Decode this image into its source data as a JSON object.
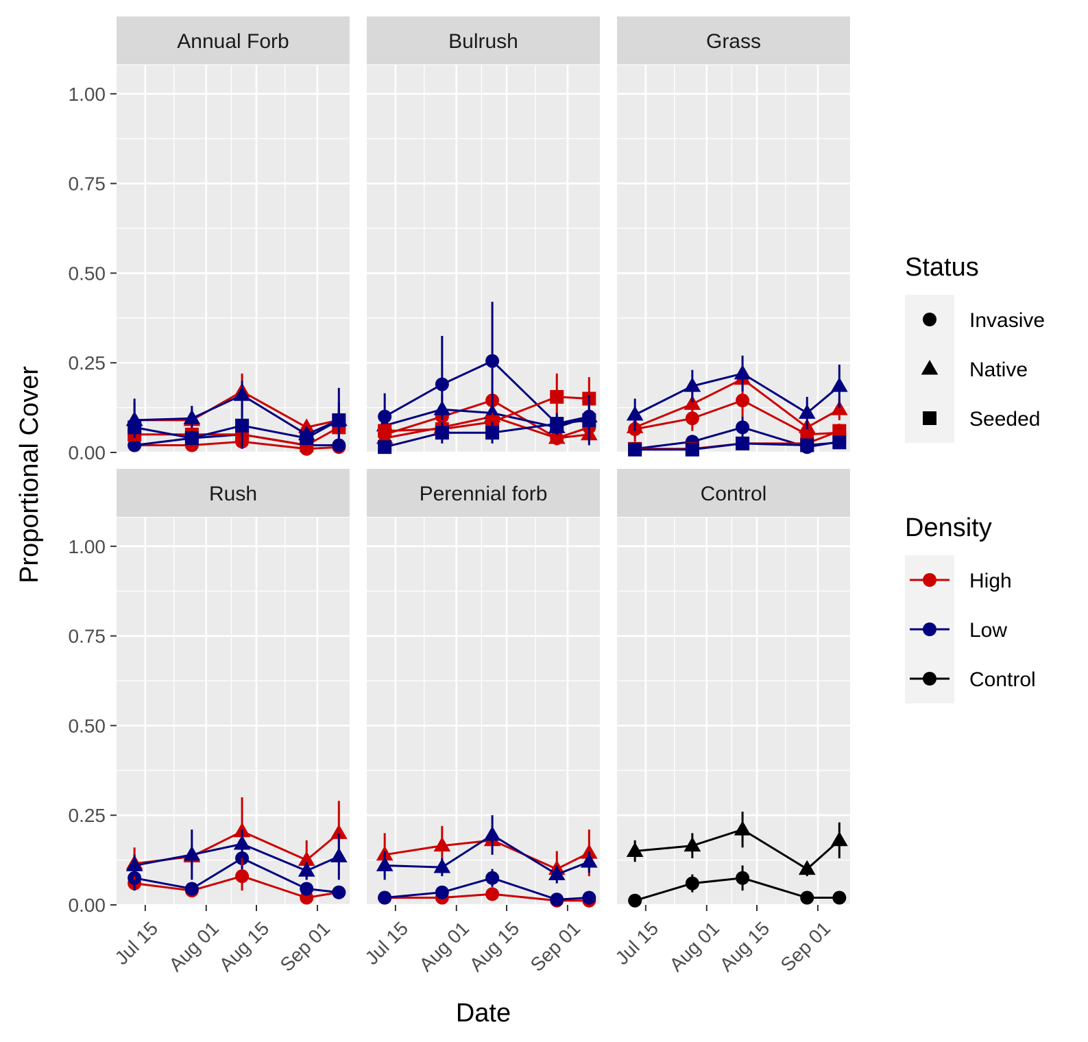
{
  "chart_data": {
    "type": "line",
    "facet_type": "wrap",
    "x_type": "date",
    "xlabel": "Date",
    "ylabel": "Proportional Cover",
    "ylim": [
      0,
      1.08
    ],
    "yticks": [
      0,
      0.25,
      0.5,
      0.75,
      1.0
    ],
    "ytick_labels": [
      "0.00",
      "0.25",
      "0.50",
      "0.75",
      "1.00"
    ],
    "xlim": [
      "2018-07-07",
      "2018-09-10"
    ],
    "xticks": [
      "2018-07-15",
      "2018-08-01",
      "2018-08-15",
      "2018-09-01"
    ],
    "xtick_labels": [
      "Jul 15",
      "Aug 01",
      "Aug 15",
      "Sep 01"
    ],
    "x_minor_breaks": [
      "2018-07-23",
      "2018-08-08",
      "2018-08-23"
    ],
    "sample_dates": [
      "2018-07-12",
      "2018-07-28",
      "2018-08-11",
      "2018-08-29",
      "2018-09-07"
    ],
    "grid": true,
    "panel_background": "#ebebeb",
    "legends": [
      {
        "title": "Status",
        "entries": [
          {
            "label": "Invasive",
            "shape": "circle"
          },
          {
            "label": "Native",
            "shape": "triangle"
          },
          {
            "label": "Seeded",
            "shape": "square"
          }
        ]
      },
      {
        "title": "Density",
        "entries": [
          {
            "label": "High",
            "color": "#cc0000"
          },
          {
            "label": "Low",
            "color": "#000080"
          },
          {
            "label": "Control",
            "color": "#000000"
          }
        ]
      }
    ],
    "legend_position": "right",
    "facets": [
      {
        "label": "Annual Forb",
        "series": [
          {
            "status": "Invasive",
            "density": "High",
            "y": [
              0.02,
              0.02,
              0.03,
              0.01,
              0.015
            ],
            "lo": [
              0.015,
              0.015,
              0.02,
              0.005,
              0.01
            ],
            "hi": [
              0.03,
              0.03,
              0.045,
              0.02,
              0.025
            ]
          },
          {
            "status": "Invasive",
            "density": "Low",
            "y": [
              0.02,
              0.04,
              0.05,
              0.02,
              0.02
            ],
            "lo": [
              0.015,
              0.03,
              0.035,
              0.015,
              0.015
            ],
            "hi": [
              0.03,
              0.05,
              0.06,
              0.03,
              0.03
            ]
          },
          {
            "status": "Native",
            "density": "High",
            "y": [
              0.09,
              0.09,
              0.17,
              0.07,
              0.09
            ],
            "lo": [
              0.04,
              0.06,
              0.12,
              0.05,
              0.06
            ],
            "hi": [
              0.14,
              0.12,
              0.22,
              0.09,
              0.12
            ]
          },
          {
            "status": "Native",
            "density": "Low",
            "y": [
              0.09,
              0.095,
              0.16,
              0.05,
              0.09
            ],
            "lo": [
              0.03,
              0.06,
              0.1,
              0.03,
              0.04
            ],
            "hi": [
              0.15,
              0.13,
              0.2,
              0.07,
              0.14
            ]
          },
          {
            "status": "Seeded",
            "density": "High",
            "y": [
              0.05,
              0.05,
              0.05,
              0.02,
              0.07
            ],
            "lo": [
              0.03,
              0.03,
              0.03,
              0.01,
              0.04
            ],
            "hi": [
              0.07,
              0.07,
              0.07,
              0.03,
              0.1
            ]
          },
          {
            "status": "Seeded",
            "density": "Low",
            "y": [
              0.07,
              0.04,
              0.075,
              0.04,
              0.09
            ],
            "lo": [
              0.04,
              0.02,
              0.01,
              0.02,
              0.0
            ],
            "hi": [
              0.1,
              0.06,
              0.14,
              0.06,
              0.18
            ]
          }
        ]
      },
      {
        "label": "Bulrush",
        "series": [
          {
            "status": "Invasive",
            "density": "High",
            "y": [
              0.05,
              0.1,
              0.145,
              0.04,
              0.07
            ],
            "lo": [
              0.03,
              0.08,
              0.11,
              0.02,
              0.05
            ],
            "hi": [
              0.07,
              0.12,
              0.18,
              0.06,
              0.09
            ]
          },
          {
            "status": "Invasive",
            "density": "Low",
            "y": [
              0.1,
              0.19,
              0.255,
              0.08,
              0.1
            ],
            "lo": [
              0.05,
              0.05,
              0.09,
              0.06,
              0.07
            ],
            "hi": [
              0.165,
              0.325,
              0.42,
              0.1,
              0.13
            ]
          },
          {
            "status": "Native",
            "density": "High",
            "y": [
              0.04,
              0.07,
              0.1,
              0.04,
              0.05
            ],
            "lo": [
              0.02,
              0.05,
              0.08,
              0.02,
              0.03
            ],
            "hi": [
              0.06,
              0.09,
              0.12,
              0.06,
              0.07
            ]
          },
          {
            "status": "Native",
            "density": "Low",
            "y": [
              0.075,
              0.12,
              0.11,
              0.07,
              0.1
            ],
            "lo": [
              0.05,
              0.08,
              0.08,
              0.05,
              0.07
            ],
            "hi": [
              0.1,
              0.16,
              0.14,
              0.09,
              0.13
            ]
          },
          {
            "status": "Seeded",
            "density": "High",
            "y": [
              0.06,
              0.065,
              0.085,
              0.155,
              0.15
            ],
            "lo": [
              0.04,
              0.04,
              0.06,
              0.09,
              0.09
            ],
            "hi": [
              0.08,
              0.09,
              0.11,
              0.22,
              0.21
            ]
          },
          {
            "status": "Seeded",
            "density": "Low",
            "y": [
              0.015,
              0.055,
              0.055,
              0.08,
              0.09
            ],
            "lo": [
              0.005,
              0.025,
              0.025,
              0.05,
              0.02
            ],
            "hi": [
              0.025,
              0.085,
              0.085,
              0.11,
              0.16
            ]
          }
        ]
      },
      {
        "label": "Grass",
        "series": [
          {
            "status": "Invasive",
            "density": "High",
            "y": [
              0.065,
              0.095,
              0.145,
              0.05,
              0.055
            ],
            "lo": [
              0.03,
              0.06,
              0.1,
              0.03,
              0.03
            ],
            "hi": [
              0.1,
              0.13,
              0.19,
              0.07,
              0.08
            ]
          },
          {
            "status": "Invasive",
            "density": "Low",
            "y": [
              0.01,
              0.03,
              0.07,
              0.015,
              0.03
            ],
            "lo": [
              0.005,
              0.015,
              0.04,
              0.005,
              0.015
            ],
            "hi": [
              0.015,
              0.045,
              0.1,
              0.025,
              0.045
            ]
          },
          {
            "status": "Native",
            "density": "High",
            "y": [
              0.07,
              0.135,
              0.205,
              0.07,
              0.12
            ],
            "lo": [
              0.04,
              0.1,
              0.17,
              0.05,
              0.09
            ],
            "hi": [
              0.1,
              0.17,
              0.24,
              0.09,
              0.15
            ]
          },
          {
            "status": "Native",
            "density": "Low",
            "y": [
              0.105,
              0.185,
              0.22,
              0.11,
              0.185
            ],
            "lo": [
              0.06,
              0.14,
              0.17,
              0.065,
              0.125
            ],
            "hi": [
              0.15,
              0.23,
              0.27,
              0.155,
              0.245
            ]
          },
          {
            "status": "Seeded",
            "density": "High",
            "y": [
              0.01,
              0.01,
              0.025,
              0.025,
              0.06
            ],
            "lo": [
              0.005,
              0.005,
              0.015,
              0.015,
              0.04
            ],
            "hi": [
              0.015,
              0.015,
              0.035,
              0.035,
              0.08
            ]
          },
          {
            "status": "Seeded",
            "density": "Low",
            "y": [
              0.008,
              0.008,
              0.025,
              0.02,
              0.028
            ],
            "lo": [
              0.004,
              0.004,
              0.015,
              0.01,
              0.018
            ],
            "hi": [
              0.012,
              0.012,
              0.035,
              0.03,
              0.038
            ]
          }
        ]
      },
      {
        "label": "Rush",
        "series": [
          {
            "status": "Invasive",
            "density": "High",
            "y": [
              0.06,
              0.04,
              0.08,
              0.02,
              0.035
            ],
            "lo": [
              0.04,
              0.025,
              0.04,
              0.01,
              0.02
            ],
            "hi": [
              0.08,
              0.055,
              0.12,
              0.03,
              0.05
            ]
          },
          {
            "status": "Invasive",
            "density": "Low",
            "y": [
              0.075,
              0.045,
              0.13,
              0.045,
              0.035
            ],
            "lo": [
              0.04,
              0.03,
              0.1,
              0.03,
              0.02
            ],
            "hi": [
              0.11,
              0.06,
              0.16,
              0.06,
              0.05
            ]
          },
          {
            "status": "Native",
            "density": "High",
            "y": [
              0.115,
              0.135,
              0.205,
              0.125,
              0.2
            ],
            "lo": [
              0.07,
              0.11,
              0.11,
              0.07,
              0.11
            ],
            "hi": [
              0.16,
              0.16,
              0.3,
              0.18,
              0.29
            ]
          },
          {
            "status": "Native",
            "density": "Low",
            "y": [
              0.11,
              0.14,
              0.17,
              0.095,
              0.135
            ],
            "lo": [
              0.08,
              0.07,
              0.13,
              0.07,
              0.07
            ],
            "hi": [
              0.14,
              0.21,
              0.21,
              0.12,
              0.2
            ]
          }
        ]
      },
      {
        "label": "Perennial forb",
        "series": [
          {
            "status": "Invasive",
            "density": "High",
            "y": [
              0.02,
              0.02,
              0.03,
              0.012,
              0.012
            ],
            "lo": [
              0.015,
              0.015,
              0.02,
              0.008,
              0.008
            ],
            "hi": [
              0.025,
              0.025,
              0.04,
              0.016,
              0.016
            ]
          },
          {
            "status": "Invasive",
            "density": "Low",
            "y": [
              0.02,
              0.035,
              0.075,
              0.015,
              0.02
            ],
            "lo": [
              0.015,
              0.025,
              0.05,
              0.01,
              0.015
            ],
            "hi": [
              0.025,
              0.045,
              0.1,
              0.02,
              0.025
            ]
          },
          {
            "status": "Native",
            "density": "High",
            "y": [
              0.14,
              0.165,
              0.18,
              0.1,
              0.145
            ],
            "lo": [
              0.08,
              0.11,
              0.14,
              0.07,
              0.08
            ],
            "hi": [
              0.2,
              0.22,
              0.22,
              0.15,
              0.21
            ]
          },
          {
            "status": "Native",
            "density": "Low",
            "y": [
              0.11,
              0.105,
              0.195,
              0.085,
              0.12
            ],
            "lo": [
              0.07,
              0.08,
              0.14,
              0.06,
              0.09
            ],
            "hi": [
              0.15,
              0.13,
              0.25,
              0.11,
              0.15
            ]
          }
        ]
      },
      {
        "label": "Control",
        "series": [
          {
            "status": "Invasive",
            "density": "Control",
            "y": [
              0.012,
              0.06,
              0.075,
              0.02,
              0.02
            ],
            "lo": [
              0.008,
              0.035,
              0.04,
              0.015,
              0.015
            ],
            "hi": [
              0.016,
              0.085,
              0.11,
              0.025,
              0.025
            ]
          },
          {
            "status": "Native",
            "density": "Control",
            "y": [
              0.15,
              0.165,
              0.21,
              0.1,
              0.18
            ],
            "lo": [
              0.12,
              0.13,
              0.16,
              0.08,
              0.13
            ],
            "hi": [
              0.18,
              0.2,
              0.26,
              0.12,
              0.23
            ]
          }
        ]
      }
    ]
  }
}
